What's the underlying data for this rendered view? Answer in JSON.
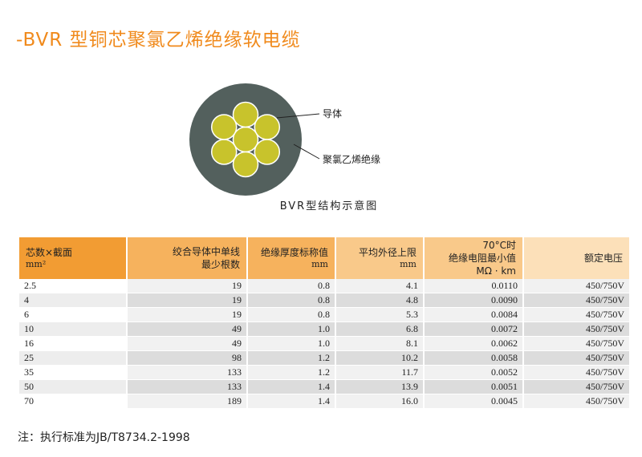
{
  "title": "-BVR 型铜芯聚氯乙烯绝缘软电缆",
  "diagram": {
    "label_conductor": "导体",
    "label_insulation": "聚氯乙烯绝缘",
    "caption": "BVR型结构示意图",
    "colors": {
      "insulation": "#53605d",
      "strand": "#c8c32c",
      "strand_edge": "#ffffff"
    }
  },
  "table": {
    "headers": [
      {
        "main": "芯数×截面",
        "sub": "mm²"
      },
      {
        "main": "绞合导体中单线",
        "main2": "最少根数"
      },
      {
        "main": "绝缘厚度标称值",
        "sub": "mm"
      },
      {
        "main": "平均外径上限",
        "sub": "mm"
      },
      {
        "top": "70°C时",
        "main": "绝缘电阻最小值",
        "sub": "MΩ · km"
      },
      {
        "main": "额定电压"
      }
    ],
    "rows": [
      [
        "2.5",
        "19",
        "0.8",
        "4.1",
        "0.0110",
        "450/750V"
      ],
      [
        "4",
        "19",
        "0.8",
        "4.8",
        "0.0090",
        "450/750V"
      ],
      [
        "6",
        "19",
        "0.8",
        "5.3",
        "0.0084",
        "450/750V"
      ],
      [
        "10",
        "49",
        "1.0",
        "6.8",
        "0.0072",
        "450/750V"
      ],
      [
        "16",
        "49",
        "1.0",
        "8.1",
        "0.0062",
        "450/750V"
      ],
      [
        "25",
        "98",
        "1.2",
        "10.2",
        "0.0058",
        "450/750V"
      ],
      [
        "35",
        "133",
        "1.2",
        "11.7",
        "0.0052",
        "450/750V"
      ],
      [
        "50",
        "133",
        "1.4",
        "13.9",
        "0.0051",
        "450/750V"
      ],
      [
        "70",
        "189",
        "1.4",
        "16.0",
        "0.0045",
        "450/750V"
      ]
    ]
  },
  "note": "注：执行标准为JB/T8734.2-1998",
  "accent_color": "#f08a1c"
}
